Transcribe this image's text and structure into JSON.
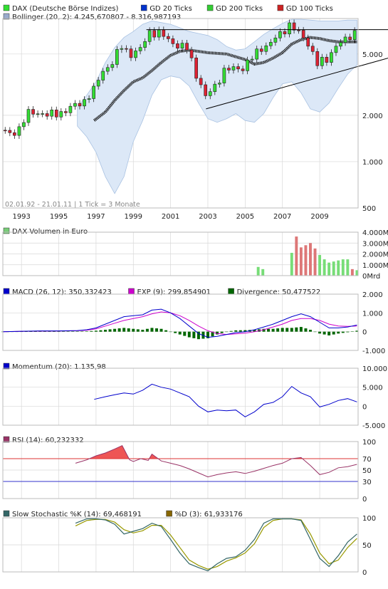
{
  "colors": {
    "up": "#33dd33",
    "down": "#dd2233",
    "bollinger_fill": "#dce8f7",
    "bollinger_line": "#a9c2e2",
    "macd": "#0000cc",
    "exp": "#cc00cc",
    "divergence": "#006600",
    "momentum": "#0000cc",
    "rsi": "#993366",
    "rsi_fill": "#ee5555",
    "rsi70": "#dd3333",
    "rsi30": "#3333cc",
    "stoch_k": "#336666",
    "stoch_d": "#999900",
    "volume_up": "#77dd77",
    "volume_down": "#dd7777",
    "trendline": "#000000",
    "grid": "#d8d8d8",
    "legend_20": "#0033cc",
    "legend_200": "#33cc33",
    "legend_100": "#cc2222",
    "legend_boll": "#99aacc",
    "legend_vol": "#77cc77",
    "legend_macd": "#0000cc",
    "legend_exp": "#cc00cc",
    "legend_div": "#006600",
    "legend_mom": "#0000cc",
    "legend_rsi": "#993366",
    "legend_k": "#336666",
    "legend_d": "#886600"
  },
  "chart_data": [
    {
      "type": "candlestick",
      "legend": [
        {
          "label": "DAX (Deutsche Börse Indizes)",
          "color_key": "up"
        },
        {
          "label": "GD 20 Ticks",
          "color_key": "legend_20"
        },
        {
          "label": "GD 200 Ticks",
          "color_key": "legend_200"
        },
        {
          "label": "GD 100 Ticks",
          "color_key": "legend_100"
        },
        {
          "label": "Bollinger (20, 2): 4.245,670807 - 8.316,987193",
          "color_key": "legend_boll"
        }
      ],
      "yscale": "log",
      "ylim": [
        500,
        8500
      ],
      "yticks": [
        {
          "v": 500,
          "label": "500"
        },
        {
          "v": 1000,
          "label": "1.000"
        },
        {
          "v": 2000,
          "label": "2.000"
        },
        {
          "v": 5000,
          "label": "5.000"
        }
      ],
      "xlim": [
        1992.0,
        2011.06
      ],
      "xticks": [
        {
          "v": 1993,
          "label": "1993"
        },
        {
          "v": 1995,
          "label": "1995"
        },
        {
          "v": 1997,
          "label": "1997"
        },
        {
          "v": 1999,
          "label": "1999"
        },
        {
          "v": 2001,
          "label": "2001"
        },
        {
          "v": 2003,
          "label": "2003"
        },
        {
          "v": 2005,
          "label": "2005"
        },
        {
          "v": 2007,
          "label": "2007"
        },
        {
          "v": 2009,
          "label": "2009"
        }
      ],
      "annotation": "02.01.92 - 21.01.11 | 1 Tick = 3 Monate",
      "close_series": {
        "x": [
          1992.0,
          1992.5,
          1993.0,
          1993.5,
          1994.0,
          1994.5,
          1995.0,
          1995.5,
          1996.0,
          1996.5,
          1997.0,
          1997.5,
          1998.0,
          1998.5,
          1999.0,
          1999.5,
          2000.0,
          2000.5,
          2001.0,
          2001.5,
          2002.0,
          2002.5,
          2003.0,
          2003.5,
          2004.0,
          2004.5,
          2005.0,
          2005.5,
          2006.0,
          2006.5,
          2007.0,
          2007.5,
          2008.0,
          2008.5,
          2009.0,
          2009.5,
          2010.0,
          2010.5,
          2011.0
        ],
        "values": [
          1600,
          1500,
          1650,
          2050,
          2100,
          2000,
          2050,
          2150,
          2300,
          2500,
          2900,
          3900,
          4400,
          5600,
          5000,
          5300,
          7000,
          6800,
          6200,
          5700,
          5400,
          3700,
          2600,
          3100,
          3900,
          4000,
          4100,
          4700,
          5500,
          5900,
          6700,
          7800,
          6800,
          5900,
          4300,
          4600,
          5700,
          6100,
          7000
        ]
      },
      "bollinger": {
        "x": [
          1996.0,
          1996.5,
          1997.0,
          1997.5,
          1998.0,
          1998.5,
          1999.0,
          1999.5,
          2000.0,
          2000.5,
          2001.0,
          2001.5,
          2002.0,
          2002.5,
          2003.0,
          2003.5,
          2004.0,
          2004.5,
          2005.0,
          2005.5,
          2006.0,
          2006.5,
          2007.0,
          2007.5,
          2008.0,
          2008.5,
          2009.0,
          2009.5,
          2010.0,
          2010.5,
          2011.0
        ],
        "upper": [
          2250,
          2700,
          3300,
          4400,
          5500,
          6400,
          7000,
          7800,
          8200,
          8000,
          7800,
          7400,
          7000,
          6800,
          6600,
          6200,
          5600,
          5300,
          5400,
          6000,
          6700,
          7300,
          7900,
          8400,
          8400,
          8300,
          8200,
          8200,
          8200,
          8300,
          8300
        ],
        "lower": [
          1700,
          1450,
          1150,
          800,
          620,
          800,
          1350,
          1850,
          2700,
          3400,
          3600,
          3500,
          3100,
          2400,
          1900,
          1800,
          1900,
          2050,
          1850,
          1800,
          2050,
          2600,
          3200,
          3300,
          2800,
          2200,
          2100,
          2400,
          3000,
          3700,
          4250
        ]
      },
      "gd200": {
        "x": [
          1996.9,
          1997.5,
          1998.0,
          1998.5,
          1999.0,
          1999.5,
          2000.0,
          2000.5,
          2001.0,
          2001.5,
          2002.0,
          2002.5,
          2003.0,
          2003.5,
          2004.0,
          2004.5,
          2005.0,
          2005.5,
          2006.0,
          2006.5,
          2007.0,
          2007.5,
          2008.0,
          2008.5,
          2009.0,
          2009.5,
          2010.0,
          2010.5,
          2011.0
        ],
        "values": [
          1850,
          2100,
          2500,
          2900,
          3300,
          3500,
          3900,
          4400,
          4900,
          5200,
          5300,
          5200,
          5100,
          5050,
          5000,
          4800,
          4600,
          4300,
          4400,
          4700,
          5100,
          5800,
          6200,
          6400,
          6300,
          6100,
          6000,
          6000,
          6000
        ]
      },
      "trendlines": [
        {
          "x": [
            1999.7,
            2011.06
          ],
          "values": [
            7200,
            7200
          ]
        },
        {
          "x": [
            2002.9,
            2011.06
          ],
          "values": [
            2200,
            4700
          ]
        }
      ]
    },
    {
      "type": "bar",
      "legend": [
        {
          "label": "DAX Volumen in Euro",
          "color_key": "legend_vol"
        }
      ],
      "ylim": [
        0,
        4000
      ],
      "yticks": [
        {
          "v": 0,
          "label": "0Mrd"
        },
        {
          "v": 1000,
          "label": "1.000Mr"
        },
        {
          "v": 2000,
          "label": "2.000Mr"
        },
        {
          "v": 3000,
          "label": "3.000Mr"
        },
        {
          "v": 4000,
          "label": "4.000Mr"
        }
      ],
      "x": [
        2005.7,
        2005.95,
        2007.5,
        2007.75,
        2008.0,
        2008.25,
        2008.5,
        2008.75,
        2009.0,
        2009.25,
        2009.5,
        2009.75,
        2010.0,
        2010.25,
        2010.5,
        2010.75,
        2011.0
      ],
      "values": [
        800,
        600,
        2100,
        3600,
        2600,
        2800,
        3000,
        2500,
        1900,
        1500,
        1200,
        1300,
        1400,
        1500,
        1500,
        600,
        500
      ],
      "up": [
        true,
        true,
        true,
        false,
        false,
        false,
        false,
        false,
        true,
        true,
        true,
        true,
        true,
        true,
        true,
        false,
        true
      ]
    },
    {
      "type": "line",
      "legend": [
        {
          "label": "MACD (26, 12): 350,332423",
          "color_key": "legend_macd"
        },
        {
          "label": "EXP (9): 299,854901",
          "color_key": "legend_exp"
        },
        {
          "label": "Divergence: 50,477522",
          "color_key": "legend_div"
        }
      ],
      "ylim": [
        -1000,
        2000
      ],
      "yticks": [
        {
          "v": -1000,
          "label": "-1.000"
        },
        {
          "v": 0,
          "label": "0"
        },
        {
          "v": 1000,
          "label": "1.000"
        },
        {
          "v": 2000,
          "label": "2.000"
        }
      ],
      "x": [
        1992.0,
        1993.0,
        1994.0,
        1995.0,
        1996.0,
        1996.5,
        1997.0,
        1997.5,
        1998.0,
        1998.5,
        1999.0,
        1999.5,
        2000.0,
        2000.5,
        2001.0,
        2001.5,
        2002.0,
        2002.5,
        2003.0,
        2003.5,
        2004.0,
        2004.5,
        2005.0,
        2005.5,
        2006.0,
        2006.5,
        2007.0,
        2007.5,
        2008.0,
        2008.5,
        2009.0,
        2009.5,
        2010.0,
        2010.5,
        2011.0
      ],
      "macd": [
        0,
        20,
        40,
        40,
        60,
        100,
        200,
        400,
        600,
        800,
        850,
        900,
        1150,
        1200,
        1000,
        700,
        300,
        -100,
        -300,
        -250,
        -150,
        -50,
        0,
        100,
        250,
        400,
        600,
        800,
        950,
        800,
        500,
        200,
        200,
        250,
        350
      ],
      "exp": [
        0,
        15,
        30,
        35,
        50,
        80,
        150,
        300,
        450,
        600,
        700,
        800,
        950,
        1050,
        1000,
        850,
        600,
        300,
        50,
        -100,
        -150,
        -120,
        -80,
        0,
        100,
        250,
        400,
        600,
        700,
        700,
        600,
        400,
        300,
        280,
        300
      ],
      "divergence": [
        0,
        5,
        10,
        5,
        10,
        20,
        50,
        100,
        150,
        200,
        150,
        100,
        200,
        150,
        0,
        -150,
        -300,
        -400,
        -350,
        -150,
        0,
        70,
        80,
        100,
        150,
        150,
        200,
        200,
        250,
        100,
        -100,
        -200,
        -100,
        -30,
        50
      ]
    },
    {
      "type": "line",
      "legend": [
        {
          "label": "Momentum (20): 1.135,98",
          "color_key": "legend_mom"
        }
      ],
      "ylim": [
        -5000,
        10000
      ],
      "yticks": [
        {
          "v": -5000,
          "label": "-5.000"
        },
        {
          "v": 0,
          "label": "0"
        },
        {
          "v": 5000,
          "label": "5.000"
        },
        {
          "v": 10000,
          "label": "10.000"
        }
      ],
      "x": [
        1996.9,
        1997.5,
        1998.0,
        1998.5,
        1999.0,
        1999.5,
        2000.0,
        2000.5,
        2001.0,
        2001.5,
        2002.0,
        2002.5,
        2003.0,
        2003.5,
        2004.0,
        2004.5,
        2005.0,
        2005.5,
        2006.0,
        2006.5,
        2007.0,
        2007.5,
        2008.0,
        2008.5,
        2009.0,
        2009.5,
        2010.0,
        2010.5,
        2011.0
      ],
      "values": [
        1800,
        2500,
        3000,
        3500,
        3200,
        4200,
        5800,
        5000,
        4500,
        3500,
        2500,
        0,
        -1500,
        -1000,
        -1200,
        -1000,
        -2800,
        -1500,
        500,
        1000,
        2500,
        5200,
        3500,
        2500,
        -200,
        500,
        1500,
        2000,
        1136
      ]
    },
    {
      "type": "line",
      "legend": [
        {
          "label": "RSI (14): 60,232332",
          "color_key": "legend_rsi"
        }
      ],
      "ylim": [
        0,
        100
      ],
      "yticks": [
        {
          "v": 0,
          "label": "0"
        },
        {
          "v": 30,
          "label": "30"
        },
        {
          "v": 50,
          "label": "50"
        },
        {
          "v": 70,
          "label": "70"
        },
        {
          "v": 100,
          "label": "100"
        }
      ],
      "levels": [
        70,
        30
      ],
      "x": [
        1995.9,
        1996.5,
        1997.0,
        1997.5,
        1998.0,
        1998.4,
        1998.8,
        1999.0,
        1999.4,
        1999.8,
        2000.0,
        2000.5,
        2001.0,
        2001.5,
        2002.0,
        2002.5,
        2003.0,
        2003.5,
        2004.0,
        2004.5,
        2005.0,
        2005.5,
        2006.0,
        2006.5,
        2007.0,
        2007.5,
        2008.0,
        2008.5,
        2009.0,
        2009.5,
        2010.0,
        2010.5,
        2011.0
      ],
      "values": [
        62,
        68,
        75,
        80,
        87,
        93,
        68,
        65,
        70,
        67,
        78,
        66,
        62,
        58,
        52,
        45,
        38,
        42,
        45,
        47,
        44,
        48,
        53,
        58,
        62,
        70,
        72,
        58,
        42,
        46,
        54,
        56,
        60
      ]
    },
    {
      "type": "line",
      "legend": [
        {
          "label": "Slow Stochastic %K (14): 69,468191",
          "color_key": "legend_k"
        },
        {
          "label": "%D (3): 61,933176",
          "color_key": "legend_d"
        }
      ],
      "ylim": [
        0,
        100
      ],
      "yticks": [
        {
          "v": 0,
          "label": "0"
        },
        {
          "v": 50,
          "label": "50"
        },
        {
          "v": 100,
          "label": "100"
        }
      ],
      "x": [
        1995.9,
        1996.5,
        1997.0,
        1997.5,
        1998.0,
        1998.5,
        1999.0,
        1999.5,
        2000.0,
        2000.5,
        2001.0,
        2001.5,
        2002.0,
        2002.5,
        2003.0,
        2003.5,
        2004.0,
        2004.5,
        2005.0,
        2005.5,
        2006.0,
        2006.5,
        2007.0,
        2007.5,
        2008.0,
        2008.5,
        2009.0,
        2009.5,
        2010.0,
        2010.5,
        2011.0
      ],
      "k": [
        90,
        98,
        98,
        96,
        88,
        70,
        75,
        80,
        90,
        84,
        60,
        35,
        15,
        8,
        2,
        15,
        25,
        28,
        40,
        60,
        90,
        98,
        98,
        98,
        95,
        60,
        25,
        10,
        30,
        55,
        70
      ],
      "d": [
        85,
        95,
        97,
        97,
        92,
        78,
        72,
        76,
        86,
        86,
        68,
        45,
        22,
        12,
        5,
        10,
        20,
        26,
        35,
        52,
        82,
        95,
        98,
        98,
        96,
        70,
        35,
        15,
        22,
        45,
        62
      ]
    }
  ]
}
